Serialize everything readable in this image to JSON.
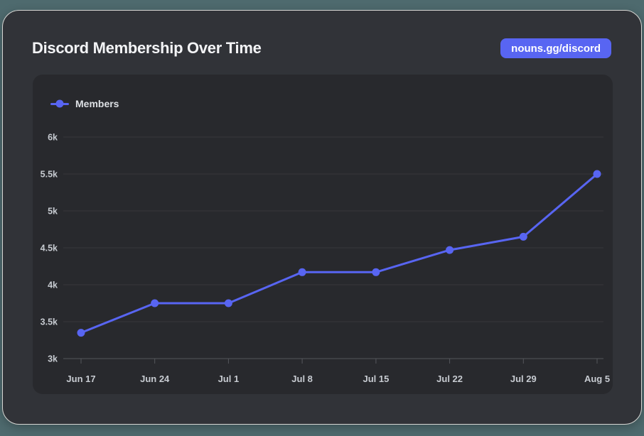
{
  "page": {
    "background_color": "#4e6a6e"
  },
  "card": {
    "title": "Discord Membership Over Time",
    "badge_label": "nouns.gg/discord",
    "background_color": "#313338",
    "panel_color": "#28292d",
    "accent_color": "#5865f2"
  },
  "chart_data": {
    "type": "line",
    "title": "Discord Membership Over Time",
    "legend_position": "top-left",
    "grid": true,
    "x": [
      "Jun 17",
      "Jun 24",
      "Jul 1",
      "Jul 8",
      "Jul 15",
      "Jul 22",
      "Jul 29",
      "Aug 5"
    ],
    "series": [
      {
        "name": "Members",
        "values": [
          3350,
          3750,
          3750,
          4170,
          4170,
          4470,
          4650,
          5500
        ],
        "color": "#5865f2"
      }
    ],
    "ylim": [
      3000,
      6000
    ],
    "ytick_step": 500,
    "ytick_labels": [
      "3k",
      "3.5k",
      "4k",
      "4.5k",
      "5k",
      "5.5k",
      "6k"
    ],
    "grid_color": "#37383c",
    "axis_color": "#55575c"
  }
}
